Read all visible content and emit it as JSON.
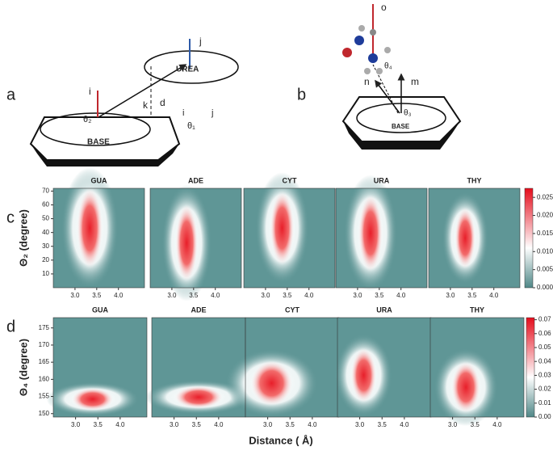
{
  "panel_a": {
    "label": "a",
    "urea": "UREA",
    "base": "BASE",
    "theta2": "θ₂",
    "theta1": "θ₁",
    "d": "d",
    "k": "k",
    "i": "i",
    "j": "j",
    "i_small": "i",
    "j_small": "j"
  },
  "panel_b": {
    "label": "b",
    "o": "o",
    "n": "n",
    "m": "m",
    "theta4": "θ₄",
    "theta3": "θ₃",
    "base": "BASE"
  },
  "panel_c": {
    "label": "c",
    "ylabel": "Θ₂ (degree)",
    "titles": [
      "GUA",
      "ADE",
      "CYT",
      "URA",
      "THY"
    ],
    "ylim": [
      0,
      72
    ],
    "yticks": [
      10,
      20,
      30,
      40,
      50,
      60,
      70
    ],
    "xlim": [
      2.5,
      4.6
    ],
    "xticks": [
      {
        "value": 3,
        "label": "3.0"
      },
      {
        "value": 3.5,
        "label": "3.5"
      },
      {
        "value": 4,
        "label": "4.0"
      }
    ],
    "clim": [
      0,
      0.0275
    ],
    "cticks": [
      {
        "value": 0,
        "label": "0.000"
      },
      {
        "value": 0.005,
        "label": "0.005"
      },
      {
        "value": 0.01,
        "label": "0.010"
      },
      {
        "value": 0.015,
        "label": "0.015"
      },
      {
        "value": 0.02,
        "label": "0.020"
      },
      {
        "value": 0.025,
        "label": "0.025"
      }
    ]
  },
  "panel_d": {
    "label": "d",
    "ylabel": "Θ₄ (degree)",
    "titles": [
      "GUA",
      "ADE",
      "CYT",
      "URA",
      "THY"
    ],
    "ylim": [
      149,
      178
    ],
    "yticks": [
      150,
      155,
      160,
      165,
      170,
      175
    ],
    "xlim": [
      2.5,
      4.6
    ],
    "xticks": [
      {
        "value": 3,
        "label": "3.0"
      },
      {
        "value": 3.5,
        "label": "3.5"
      },
      {
        "value": 4,
        "label": "4.0"
      }
    ],
    "clim": [
      0,
      0.0715
    ],
    "cticks": [
      {
        "value": 0,
        "label": "0.00"
      },
      {
        "value": 0.01,
        "label": "0.01"
      },
      {
        "value": 0.02,
        "label": "0.02"
      },
      {
        "value": 0.03,
        "label": "0.03"
      },
      {
        "value": 0.04,
        "label": "0.04"
      },
      {
        "value": 0.05,
        "label": "0.05"
      },
      {
        "value": 0.06,
        "label": "0.06"
      },
      {
        "value": 0.07,
        "label": "0.07"
      }
    ]
  },
  "xlabel": "Distance ( Å)"
}
